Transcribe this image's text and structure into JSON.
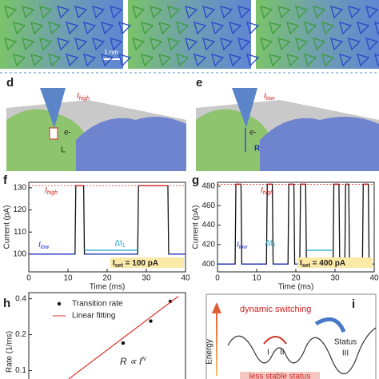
{
  "top_images": {
    "scale_bar": "1 nm"
  },
  "panel_d": {
    "label": "d",
    "current": {
      "base": "I",
      "sub": "high"
    },
    "electron": "e-",
    "site": "L"
  },
  "panel_e": {
    "label": "e",
    "current": {
      "base": "I",
      "sub": "low"
    },
    "electron": "e-",
    "site": "R"
  },
  "panel_i": {
    "label": "i",
    "axis": "Energy",
    "title": "dynamic switching",
    "state1": "I",
    "state2": "II",
    "status": "Status",
    "status_num": "III",
    "note": "less stable status"
  },
  "chart_data": [
    {
      "type": "line",
      "label": "f",
      "xlabel": "Time (ms)",
      "ylabel": "Current (pA)",
      "xlim": [
        0,
        40
      ],
      "xticks": [
        0,
        10,
        20,
        30,
        40
      ],
      "ylim": [
        92,
        132.5
      ],
      "yticks": [
        100,
        110,
        120,
        130
      ],
      "ref_line": {
        "value": 131,
        "color": "#e03030"
      },
      "annotations": {
        "high": {
          "base": "I",
          "sub": "high"
        },
        "low": {
          "base": "I",
          "sub": "low"
        },
        "dt": {
          "base": "Δt",
          "sub": "1"
        },
        "set": {
          "base": "I",
          "sub": "set",
          "rest": " = 100 pA"
        }
      },
      "x": [
        0,
        11.8,
        12,
        14,
        14.2,
        27.8,
        28,
        35.5,
        35.7,
        40
      ],
      "series": [
        {
          "color": "#111111",
          "values": [
            100,
            100,
            131,
            131,
            100,
            100,
            131,
            131,
            100,
            100
          ]
        },
        {
          "color": "#2233cc",
          "values": [
            100,
            100,
            null,
            null,
            100,
            100,
            null,
            null,
            100,
            100
          ]
        },
        {
          "color": "#e02020",
          "values": [
            null,
            null,
            131,
            131,
            null,
            null,
            131,
            131,
            null,
            null
          ]
        }
      ]
    },
    {
      "type": "line",
      "label": "g",
      "xlabel": "Time (ms)",
      "ylabel": "Current (pA)",
      "xlim": [
        0,
        40
      ],
      "xticks": [
        0,
        10,
        20,
        30,
        40
      ],
      "ylim": [
        392,
        484
      ],
      "yticks": [
        400,
        420,
        440,
        460,
        480
      ],
      "ref_line": {
        "value": 482,
        "color": "#e03030"
      },
      "annotations": {
        "high": {
          "base": "I",
          "sub": "high"
        },
        "low": {
          "base": "I",
          "sub": "low"
        },
        "dt": {
          "base": "Δt",
          "sub": "2"
        },
        "set": {
          "base": "I",
          "sub": "set",
          "rest": " = 400 pA"
        }
      },
      "x": [
        0,
        4.5,
        4.7,
        6,
        6.2,
        12.5,
        12.7,
        14,
        14.2,
        18,
        18.2,
        19.5,
        19.7,
        21,
        21.2,
        22.5,
        22.7,
        29.5,
        29.7,
        31,
        31.2,
        32.5,
        32.7,
        33.5,
        33.7,
        37,
        37.2,
        38.5,
        38.7,
        40
      ],
      "series": [
        {
          "color": "#111111",
          "values": [
            400,
            400,
            482,
            482,
            400,
            400,
            482,
            482,
            400,
            400,
            482,
            482,
            400,
            400,
            482,
            482,
            400,
            400,
            482,
            482,
            400,
            400,
            482,
            482,
            400,
            400,
            482,
            482,
            400,
            400
          ]
        },
        {
          "color": "#2233cc",
          "values": [
            400,
            400,
            null,
            null,
            400,
            400,
            null,
            null,
            400,
            400,
            null,
            null,
            400,
            400,
            null,
            null,
            400,
            400,
            null,
            null,
            400,
            400,
            null,
            null,
            400,
            400,
            null,
            null,
            400,
            400
          ]
        },
        {
          "color": "#e02020",
          "values": [
            null,
            null,
            482,
            482,
            null,
            null,
            482,
            482,
            null,
            null,
            482,
            482,
            null,
            null,
            482,
            482,
            null,
            null,
            482,
            482,
            null,
            null,
            482,
            482,
            null,
            null,
            482,
            482,
            null,
            null
          ]
        }
      ]
    },
    {
      "type": "scatter",
      "label": "h",
      "ylabel": "Rate (1/ms)",
      "log": true,
      "xlim": [
        50,
        500
      ],
      "ylim": [
        0.085,
        0.45
      ],
      "yticks": [
        0.1,
        0.2,
        0.4
      ],
      "formula": {
        "base": "R ∝ I",
        "sup": "N"
      },
      "series": [
        {
          "name": "Transition rate",
          "color": "#111111",
          "x": [
            200,
            300,
            400
          ],
          "values": [
            0.17,
            0.26,
            0.38
          ]
        },
        {
          "name": "Linear fitting",
          "color": "#e03030",
          "x": [
            90,
            450
          ],
          "values": [
            0.085,
            0.42
          ]
        }
      ]
    }
  ]
}
